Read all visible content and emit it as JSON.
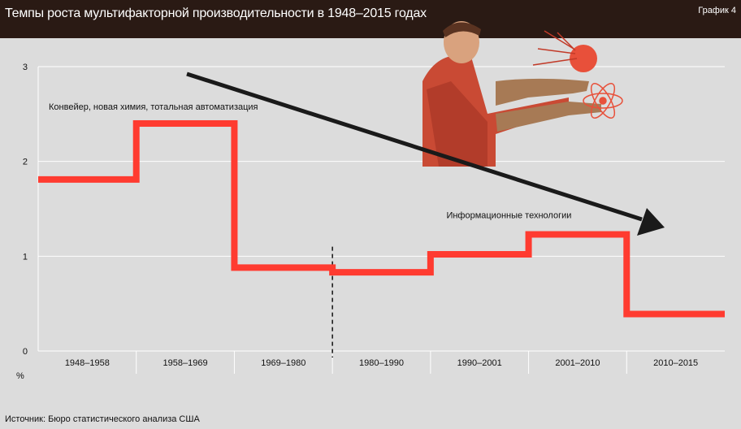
{
  "header": {
    "title": "Темпы роста мультифакторной производительности в 1948–2015 годах",
    "badge": "График 4"
  },
  "footer": {
    "source": "Источник: Бюро статистического анализа США"
  },
  "colors": {
    "header_bg": "#2a1a14",
    "plot_bg": "#dcdcdc",
    "line": "#ff3b30",
    "arrow": "#1a1a1a",
    "grid": "#ffffff"
  },
  "illustration": "retro-worker-holding-atom-icon",
  "chart_data": {
    "type": "line",
    "step": true,
    "categories": [
      "1948–1958",
      "1958–1969",
      "1969–1980",
      "1980–1990",
      "1990–2001",
      "2001–2010",
      "2010–2015"
    ],
    "values": [
      1.81,
      2.4,
      0.88,
      0.83,
      1.02,
      1.23,
      0.39
    ],
    "ylim": [
      0,
      3
    ],
    "yticks": [
      0,
      1,
      2,
      3
    ],
    "ylabel": "%",
    "xlabel": "",
    "title": "Темпы роста мультифакторной производительности в 1948–2015 годах",
    "grid": true,
    "annotations": [
      {
        "text": "Конвейер, новая химия, тотальная автоматизация",
        "category": "1958–1969"
      },
      {
        "text": "Информационные технологии",
        "category": "2001–2010"
      }
    ],
    "divider_after_category": "1969–1980",
    "trend_arrow": "downward"
  }
}
